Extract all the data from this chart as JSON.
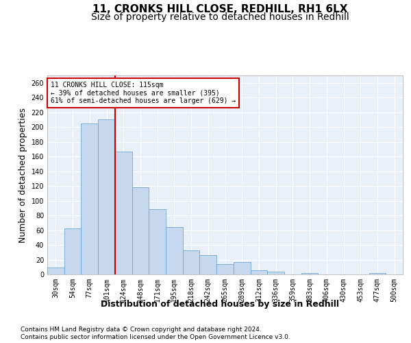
{
  "title_line1": "11, CRONKS HILL CLOSE, REDHILL, RH1 6LX",
  "title_line2": "Size of property relative to detached houses in Redhill",
  "xlabel": "Distribution of detached houses by size in Redhill",
  "ylabel": "Number of detached properties",
  "bin_labels": [
    "30sqm",
    "54sqm",
    "77sqm",
    "101sqm",
    "124sqm",
    "148sqm",
    "171sqm",
    "195sqm",
    "218sqm",
    "242sqm",
    "265sqm",
    "289sqm",
    "312sqm",
    "336sqm",
    "359sqm",
    "383sqm",
    "406sqm",
    "430sqm",
    "453sqm",
    "477sqm",
    "500sqm"
  ],
  "bar_values": [
    9,
    62,
    205,
    210,
    167,
    118,
    88,
    64,
    33,
    26,
    14,
    17,
    6,
    4,
    0,
    2,
    0,
    0,
    0,
    2,
    0
  ],
  "bar_color": "#c5d8ed",
  "bar_edge_color": "#5b9bd5",
  "property_line_x": 3.5,
  "property_size": 115,
  "annotation_text": "11 CRONKS HILL CLOSE: 115sqm\n← 39% of detached houses are smaller (395)\n61% of semi-detached houses are larger (629) →",
  "annotation_box_color": "#ffffff",
  "annotation_box_edge": "#cc0000",
  "vline_color": "#cc0000",
  "footer_line1": "Contains HM Land Registry data © Crown copyright and database right 2024.",
  "footer_line2": "Contains public sector information licensed under the Open Government Licence v3.0.",
  "ylim": [
    0,
    270
  ],
  "yticks": [
    0,
    20,
    40,
    60,
    80,
    100,
    120,
    140,
    160,
    180,
    200,
    220,
    240,
    260
  ],
  "plot_bg_color": "#eaf0f8",
  "grid_color": "#ffffff",
  "title_fontsize": 11,
  "subtitle_fontsize": 10,
  "tick_fontsize": 7,
  "label_fontsize": 9
}
